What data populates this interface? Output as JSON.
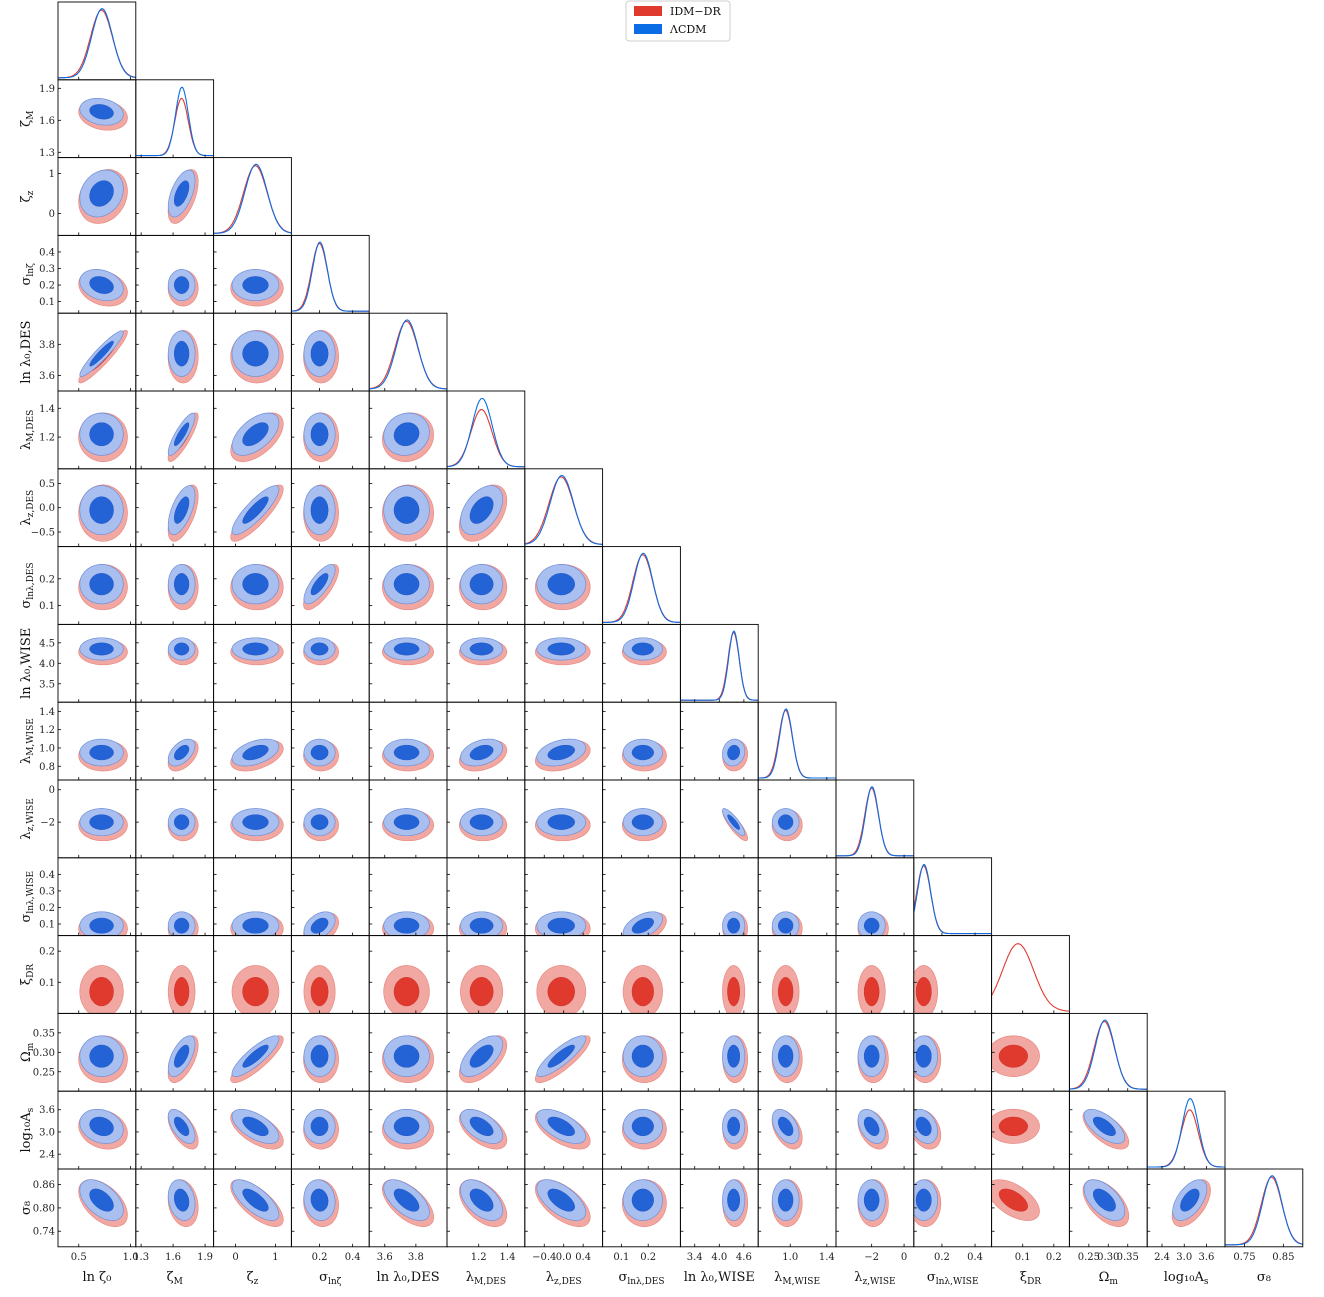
{
  "chart_data": {
    "type": "corner",
    "title": "",
    "legend": {
      "placement": "top-center",
      "entries": [
        {
          "name": "IDM−DR",
          "color": "#e03a2f"
        },
        {
          "name": "ΛCDM",
          "color": "#0a6de6"
        }
      ]
    },
    "series": [
      {
        "name": "IDM−DR",
        "color": "#e03a2f",
        "fill_outer": "#f2a8a2",
        "fill_inner": "#e03a2f"
      },
      {
        "name": "ΛCDM",
        "color": "#0a6de6",
        "fill_outer": "#a9bff0",
        "fill_inner": "#2463d6"
      }
    ],
    "parameters": [
      {
        "label": "ln ζ₀",
        "range": [
          0.3,
          1.05
        ],
        "ticks": [
          "0.5",
          "1.0"
        ],
        "tick_values": [
          0.5,
          1.0
        ],
        "mean": 0.72,
        "sigma": 0.1,
        "ylabel_html": ""
      },
      {
        "label": "ζ_M",
        "range": [
          1.25,
          1.98
        ],
        "ticks": [
          "1.3",
          "1.6",
          "1.9"
        ],
        "tick_values": [
          1.3,
          1.6,
          1.9
        ],
        "mean": 1.68,
        "sigma": 0.06
      },
      {
        "label": "ζ_z",
        "range": [
          -0.55,
          1.4
        ],
        "ticks": [
          "0",
          "1"
        ],
        "tick_values": [
          0,
          1
        ],
        "mean": 0.5,
        "sigma": 0.28
      },
      {
        "label": "σ_lnζ",
        "range": [
          0.03,
          0.5
        ],
        "ticks": [
          "0.2",
          "0.4"
        ],
        "tick_values": [
          0.2,
          0.4
        ],
        "ylabel_ticks": [
          "0.1",
          "0.2",
          "0.3",
          "0.4"
        ],
        "ylabel_tick_values": [
          0.1,
          0.2,
          0.3,
          0.4
        ],
        "mean": 0.2,
        "sigma": 0.045
      },
      {
        "label": "ln λ₀,DES",
        "range": [
          3.5,
          4.0
        ],
        "ticks": [
          "3.6",
          "3.8"
        ],
        "tick_values": [
          3.6,
          3.8
        ],
        "mean": 3.74,
        "sigma": 0.07
      },
      {
        "label": "λ_M,DES",
        "range": [
          0.98,
          1.52
        ],
        "ticks": [
          "1.2",
          "1.4"
        ],
        "tick_values": [
          1.2,
          1.4
        ],
        "mean": 1.22,
        "sigma": 0.07
      },
      {
        "label": "λ_z,DES",
        "range": [
          -0.8,
          0.8
        ],
        "ticks": [
          "−0.4",
          "0.0",
          "0.4"
        ],
        "tick_values": [
          -0.4,
          0.0,
          0.4
        ],
        "ylabel_ticks": [
          "−0.5",
          "0.0",
          "0.5"
        ],
        "ylabel_tick_values": [
          -0.5,
          0.0,
          0.5
        ],
        "mean": -0.05,
        "sigma": 0.24
      },
      {
        "label": "σ_lnλ,DES",
        "range": [
          0.03,
          0.32
        ],
        "ticks": [
          "0.1",
          "0.2"
        ],
        "tick_values": [
          0.1,
          0.2
        ],
        "mean": 0.18,
        "sigma": 0.035
      },
      {
        "label": "ln λ₀,WISE",
        "range": [
          3.05,
          4.95
        ],
        "ticks": [
          "3.4",
          "4.0",
          "4.6"
        ],
        "tick_values": [
          3.4,
          4.0,
          4.6
        ],
        "ylabel_ticks": [
          "3.5",
          "4.0",
          "4.5"
        ],
        "ylabel_tick_values": [
          3.5,
          4.0,
          4.5
        ],
        "mean": 4.35,
        "sigma": 0.13
      },
      {
        "label": "λ_M,WISE",
        "range": [
          0.65,
          1.5
        ],
        "ticks": [
          "1.0",
          "1.4"
        ],
        "tick_values": [
          1.0,
          1.4
        ],
        "ylabel_ticks": [
          "0.8",
          "1.0",
          "1.2",
          "1.4"
        ],
        "ylabel_tick_values": [
          0.8,
          1.0,
          1.2,
          1.4
        ],
        "mean": 0.95,
        "sigma": 0.07
      },
      {
        "label": "λ_z,WISE",
        "range": [
          -4.2,
          0.6
        ],
        "ticks": [
          "−2",
          "0"
        ],
        "tick_values": [
          -2,
          0
        ],
        "mean": -2.0,
        "sigma": 0.4
      },
      {
        "label": "σ_lnλ,WISE",
        "range": [
          0.03,
          0.5
        ],
        "ticks": [
          "0.2",
          "0.4"
        ],
        "tick_values": [
          0.2,
          0.4
        ],
        "ylabel_ticks": [
          "0.1",
          "0.2",
          "0.3",
          "0.4"
        ],
        "ylabel_tick_values": [
          0.1,
          0.2,
          0.3,
          0.4
        ],
        "mean": 0.09,
        "sigma": 0.04
      },
      {
        "label": "ξ_DR",
        "range": [
          0.0,
          0.25
        ],
        "ticks": [
          "0.1",
          "0.2"
        ],
        "tick_values": [
          0.1,
          0.2
        ],
        "mean": 0.07,
        "sigma": 0.04
      },
      {
        "label": "Ω_m",
        "range": [
          0.2,
          0.4
        ],
        "ticks": [
          "0.25",
          "0.30",
          "0.35"
        ],
        "tick_values": [
          0.25,
          0.3,
          0.35
        ],
        "mean": 0.29,
        "sigma": 0.025
      },
      {
        "label": "log₁₀A_s",
        "range": [
          2.0,
          4.1
        ],
        "ticks": [
          "2.4",
          "3.0",
          "3.6"
        ],
        "tick_values": [
          2.4,
          3.0,
          3.6
        ],
        "mean": 3.15,
        "sigma": 0.22
      },
      {
        "label": "σ₈",
        "range": [
          0.7,
          0.9
        ],
        "ticks": [
          "0.75",
          "0.85"
        ],
        "tick_values": [
          0.75,
          0.85
        ],
        "ylabel_ticks": [
          "0.74",
          "0.80",
          "0.86"
        ],
        "ylabel_tick_values": [
          0.74,
          0.8,
          0.86
        ],
        "mean": 0.82,
        "sigma": 0.025
      }
    ],
    "note_y_ticks_param0": []
  }
}
